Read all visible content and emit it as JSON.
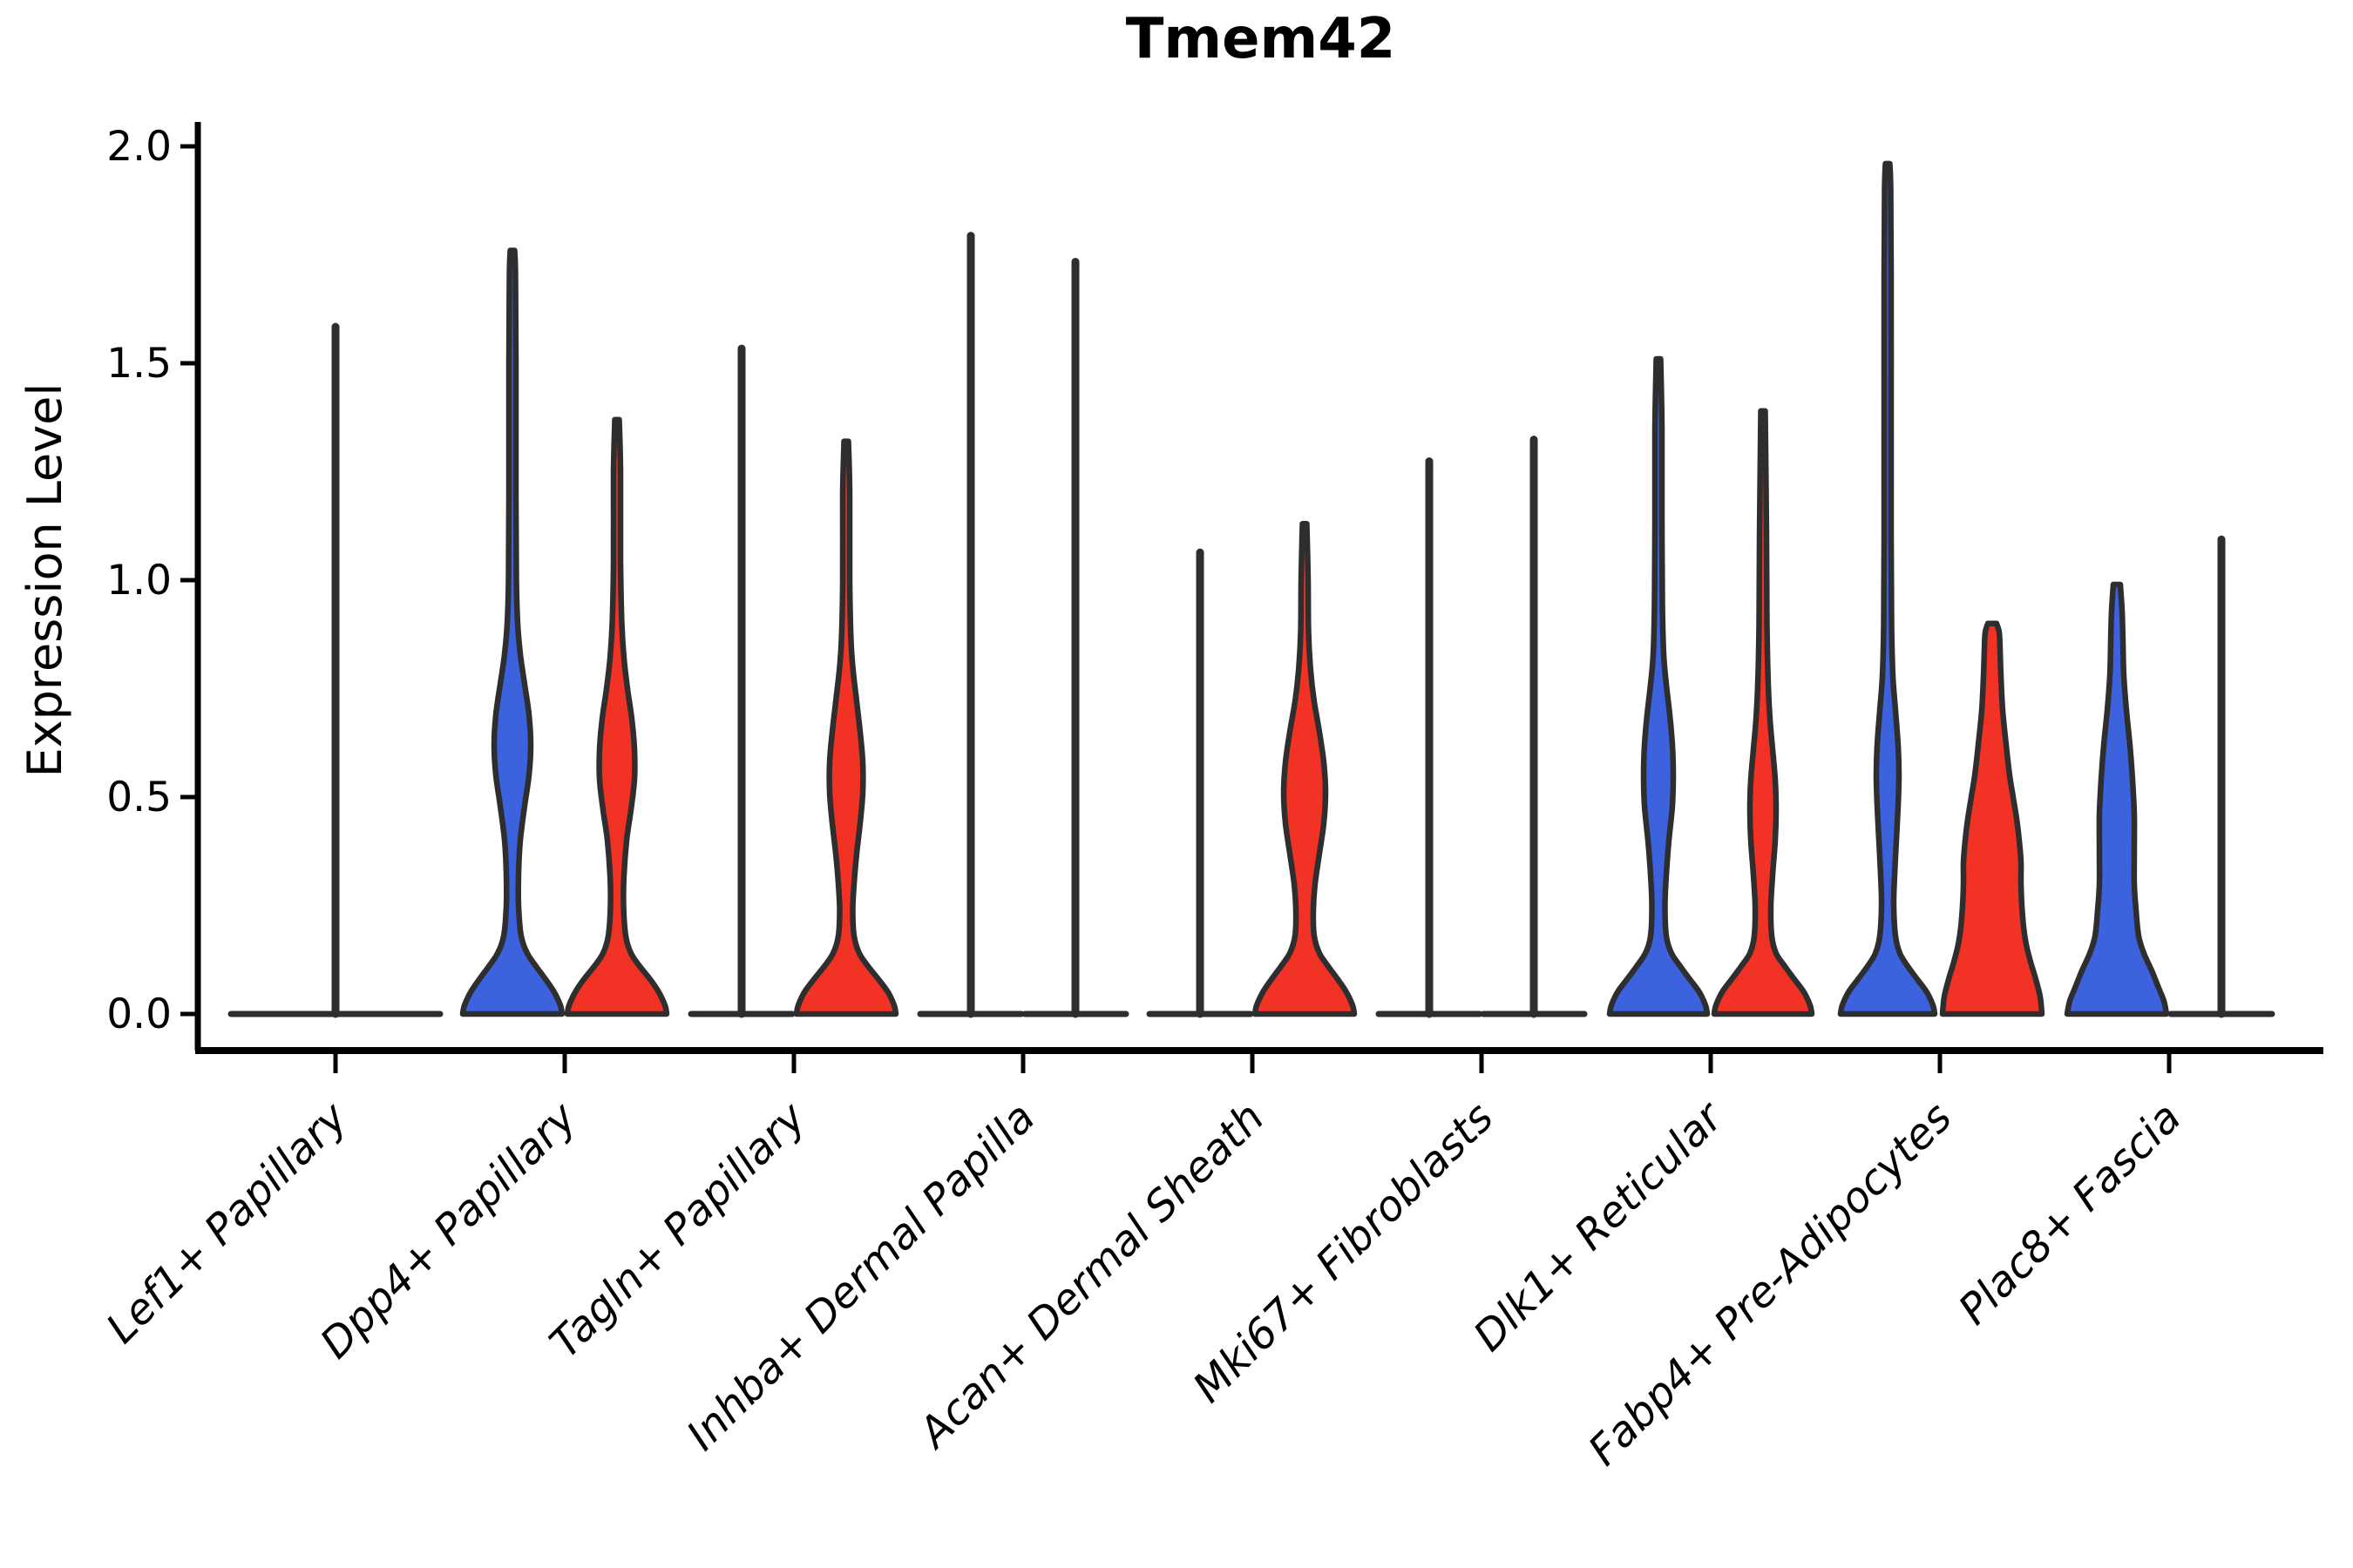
{
  "chart_data": {
    "type": "violin",
    "title": "Tmem42",
    "xlabel": "",
    "ylabel": "Expression Level",
    "ylim": [
      0,
      2.05
    ],
    "grid": false,
    "legend_position": "none",
    "yticks": [
      {
        "value": 0.0,
        "label": "0.0"
      },
      {
        "value": 0.5,
        "label": "0.5"
      },
      {
        "value": 1.0,
        "label": "1.0"
      },
      {
        "value": 1.5,
        "label": "1.5"
      },
      {
        "value": 2.0,
        "label": "2.0"
      }
    ],
    "categories": [
      "Lef1+ Papillary",
      "Dpp4+ Papillary",
      "Tagln+ Papillary",
      "Inhba+ Dermal Papilla",
      "Acan+ Dermal Sheath",
      "Mki67+ Fibroblasts",
      "Dlk1+ Reticular",
      "Fabp4+ Pre-Adipocytes",
      "Plac8+ Fascia"
    ],
    "groups": [
      {
        "id": "blue",
        "fill": "#3C62DE"
      },
      {
        "id": "red",
        "fill": "#F33226"
      },
      {
        "id": "single",
        "fill": "none"
      }
    ],
    "outline_color": "#2E2E2E",
    "violins": [
      {
        "category": "Lef1+ Papillary",
        "group": "single",
        "shape": "collapsed",
        "offset": 0,
        "flat_half_width": 120,
        "max": 1.59
      },
      {
        "category": "Dpp4+ Papillary",
        "group": "blue",
        "shape": "violin",
        "offset": -60,
        "max": 1.76,
        "profile": [
          [
            0,
            57
          ],
          [
            0.02,
            55
          ],
          [
            0.05,
            48
          ],
          [
            0.08,
            38
          ],
          [
            0.11,
            27
          ],
          [
            0.14,
            17
          ],
          [
            0.18,
            10
          ],
          [
            0.25,
            7
          ],
          [
            0.32,
            7
          ],
          [
            0.4,
            9
          ],
          [
            0.48,
            14
          ],
          [
            0.55,
            19
          ],
          [
            0.62,
            21
          ],
          [
            0.69,
            19
          ],
          [
            0.76,
            14
          ],
          [
            0.83,
            9
          ],
          [
            0.9,
            6
          ],
          [
            1.0,
            4.5
          ],
          [
            1.2,
            4
          ],
          [
            1.5,
            4
          ],
          [
            1.7,
            3.5
          ],
          [
            1.76,
            2.5
          ]
        ]
      },
      {
        "category": "Dpp4+ Papillary",
        "group": "red",
        "shape": "violin",
        "offset": 60,
        "max": 1.37,
        "profile": [
          [
            0,
            57
          ],
          [
            0.02,
            55
          ],
          [
            0.05,
            48
          ],
          [
            0.08,
            38
          ],
          [
            0.11,
            26
          ],
          [
            0.14,
            16
          ],
          [
            0.18,
            10
          ],
          [
            0.25,
            7.5
          ],
          [
            0.32,
            8
          ],
          [
            0.4,
            11
          ],
          [
            0.47,
            16
          ],
          [
            0.54,
            20
          ],
          [
            0.61,
            20
          ],
          [
            0.68,
            17
          ],
          [
            0.75,
            12
          ],
          [
            0.82,
            8
          ],
          [
            0.9,
            5.5
          ],
          [
            1.05,
            4
          ],
          [
            1.25,
            4
          ],
          [
            1.37,
            2.5
          ]
        ]
      },
      {
        "category": "Tagln+ Papillary",
        "group": "blue",
        "shape": "collapsed",
        "offset": -60,
        "flat_half_width": 58,
        "max": 1.54
      },
      {
        "category": "Tagln+ Papillary",
        "group": "red",
        "shape": "violin",
        "offset": 60,
        "max": 1.32,
        "profile": [
          [
            0,
            57
          ],
          [
            0.02,
            55
          ],
          [
            0.05,
            48
          ],
          [
            0.08,
            37
          ],
          [
            0.11,
            25
          ],
          [
            0.14,
            15
          ],
          [
            0.18,
            9
          ],
          [
            0.24,
            7.5
          ],
          [
            0.3,
            9
          ],
          [
            0.37,
            12
          ],
          [
            0.44,
            16
          ],
          [
            0.51,
            19
          ],
          [
            0.58,
            19
          ],
          [
            0.65,
            16
          ],
          [
            0.72,
            12
          ],
          [
            0.79,
            8
          ],
          [
            0.86,
            5.5
          ],
          [
            1.0,
            4
          ],
          [
            1.2,
            4
          ],
          [
            1.32,
            2.5
          ]
        ]
      },
      {
        "category": "Inhba+ Dermal Papilla",
        "group": "blue",
        "shape": "collapsed",
        "offset": -60,
        "flat_half_width": 58,
        "max": 1.8
      },
      {
        "category": "Inhba+ Dermal Papilla",
        "group": "red",
        "shape": "collapsed",
        "offset": 60,
        "flat_half_width": 58,
        "max": 1.74
      },
      {
        "category": "Acan+ Dermal Sheath",
        "group": "blue",
        "shape": "collapsed",
        "offset": -60,
        "flat_half_width": 58,
        "max": 1.07
      },
      {
        "category": "Acan+ Dermal Sheath",
        "group": "red",
        "shape": "violin",
        "offset": 60,
        "max": 1.13,
        "profile": [
          [
            0,
            57
          ],
          [
            0.02,
            55
          ],
          [
            0.05,
            48
          ],
          [
            0.08,
            38
          ],
          [
            0.11,
            27
          ],
          [
            0.14,
            17
          ],
          [
            0.18,
            11
          ],
          [
            0.24,
            10
          ],
          [
            0.3,
            12
          ],
          [
            0.37,
            17
          ],
          [
            0.44,
            22
          ],
          [
            0.51,
            24
          ],
          [
            0.58,
            22
          ],
          [
            0.65,
            17
          ],
          [
            0.72,
            11
          ],
          [
            0.79,
            7
          ],
          [
            0.88,
            4.5
          ],
          [
            1.0,
            4
          ],
          [
            1.13,
            2.5
          ]
        ]
      },
      {
        "category": "Mki67+ Fibroblasts",
        "group": "blue",
        "shape": "collapsed",
        "offset": -60,
        "flat_half_width": 58,
        "max": 1.28
      },
      {
        "category": "Mki67+ Fibroblasts",
        "group": "red",
        "shape": "collapsed",
        "offset": 60,
        "flat_half_width": 58,
        "max": 1.33
      },
      {
        "category": "Dlk1+ Reticular",
        "group": "blue",
        "shape": "violin",
        "offset": -60,
        "max": 1.51,
        "profile": [
          [
            0,
            56
          ],
          [
            0.02,
            54
          ],
          [
            0.05,
            47
          ],
          [
            0.08,
            36
          ],
          [
            0.11,
            25
          ],
          [
            0.14,
            15
          ],
          [
            0.18,
            9
          ],
          [
            0.25,
            7.5
          ],
          [
            0.32,
            9
          ],
          [
            0.4,
            12
          ],
          [
            0.48,
            16
          ],
          [
            0.55,
            17
          ],
          [
            0.62,
            16
          ],
          [
            0.69,
            13
          ],
          [
            0.76,
            9
          ],
          [
            0.83,
            6
          ],
          [
            0.95,
            4.5
          ],
          [
            1.15,
            4
          ],
          [
            1.35,
            4
          ],
          [
            1.51,
            2.5
          ]
        ]
      },
      {
        "category": "Dlk1+ Reticular",
        "group": "red",
        "shape": "violin",
        "offset": 60,
        "max": 1.39,
        "profile": [
          [
            0,
            56
          ],
          [
            0.02,
            54
          ],
          [
            0.05,
            47
          ],
          [
            0.08,
            36
          ],
          [
            0.11,
            25
          ],
          [
            0.14,
            15
          ],
          [
            0.18,
            10
          ],
          [
            0.25,
            9
          ],
          [
            0.32,
            11
          ],
          [
            0.4,
            14
          ],
          [
            0.47,
            15
          ],
          [
            0.54,
            14
          ],
          [
            0.61,
            11
          ],
          [
            0.68,
            8
          ],
          [
            0.76,
            6
          ],
          [
            0.9,
            4.5
          ],
          [
            1.1,
            4
          ],
          [
            1.39,
            2.5
          ]
        ]
      },
      {
        "category": "Fabp4+ Pre-Adipocytes",
        "group": "blue",
        "shape": "violin",
        "offset": -60,
        "max": 1.96,
        "profile": [
          [
            0,
            54
          ],
          [
            0.02,
            52
          ],
          [
            0.05,
            45
          ],
          [
            0.08,
            34
          ],
          [
            0.11,
            23
          ],
          [
            0.14,
            14
          ],
          [
            0.18,
            9
          ],
          [
            0.25,
            7
          ],
          [
            0.32,
            8
          ],
          [
            0.4,
            10
          ],
          [
            0.48,
            12
          ],
          [
            0.55,
            13
          ],
          [
            0.62,
            12
          ],
          [
            0.7,
            9
          ],
          [
            0.78,
            6
          ],
          [
            0.9,
            4.5
          ],
          [
            1.1,
            4
          ],
          [
            1.4,
            4
          ],
          [
            1.7,
            4
          ],
          [
            1.9,
            3.5
          ],
          [
            1.96,
            2.5
          ]
        ]
      },
      {
        "category": "Fabp4+ Pre-Adipocytes",
        "group": "red",
        "shape": "violin",
        "offset": 60,
        "max": 0.9,
        "profile": [
          [
            0,
            57
          ],
          [
            0.04,
            55
          ],
          [
            0.08,
            50
          ],
          [
            0.12,
            44
          ],
          [
            0.16,
            39
          ],
          [
            0.2,
            36
          ],
          [
            0.25,
            34
          ],
          [
            0.3,
            33
          ],
          [
            0.35,
            33
          ],
          [
            0.4,
            31
          ],
          [
            0.45,
            28
          ],
          [
            0.5,
            24
          ],
          [
            0.55,
            20
          ],
          [
            0.62,
            16
          ],
          [
            0.7,
            12
          ],
          [
            0.78,
            10
          ],
          [
            0.84,
            9
          ],
          [
            0.88,
            8
          ],
          [
            0.9,
            5
          ]
        ]
      },
      {
        "category": "Plac8+ Fascia",
        "group": "blue",
        "shape": "violin",
        "offset": -60,
        "max": 0.99,
        "profile": [
          [
            0,
            57
          ],
          [
            0.03,
            54
          ],
          [
            0.06,
            48
          ],
          [
            0.1,
            40
          ],
          [
            0.14,
            31
          ],
          [
            0.18,
            25
          ],
          [
            0.24,
            22
          ],
          [
            0.3,
            20
          ],
          [
            0.38,
            20
          ],
          [
            0.46,
            20
          ],
          [
            0.54,
            18
          ],
          [
            0.62,
            15
          ],
          [
            0.7,
            11
          ],
          [
            0.78,
            8
          ],
          [
            0.86,
            7
          ],
          [
            0.93,
            6
          ],
          [
            0.99,
            4
          ]
        ]
      },
      {
        "category": "Plac8+ Fascia",
        "group": "red",
        "shape": "collapsed",
        "offset": 60,
        "flat_half_width": 58,
        "max": 1.1
      }
    ]
  }
}
